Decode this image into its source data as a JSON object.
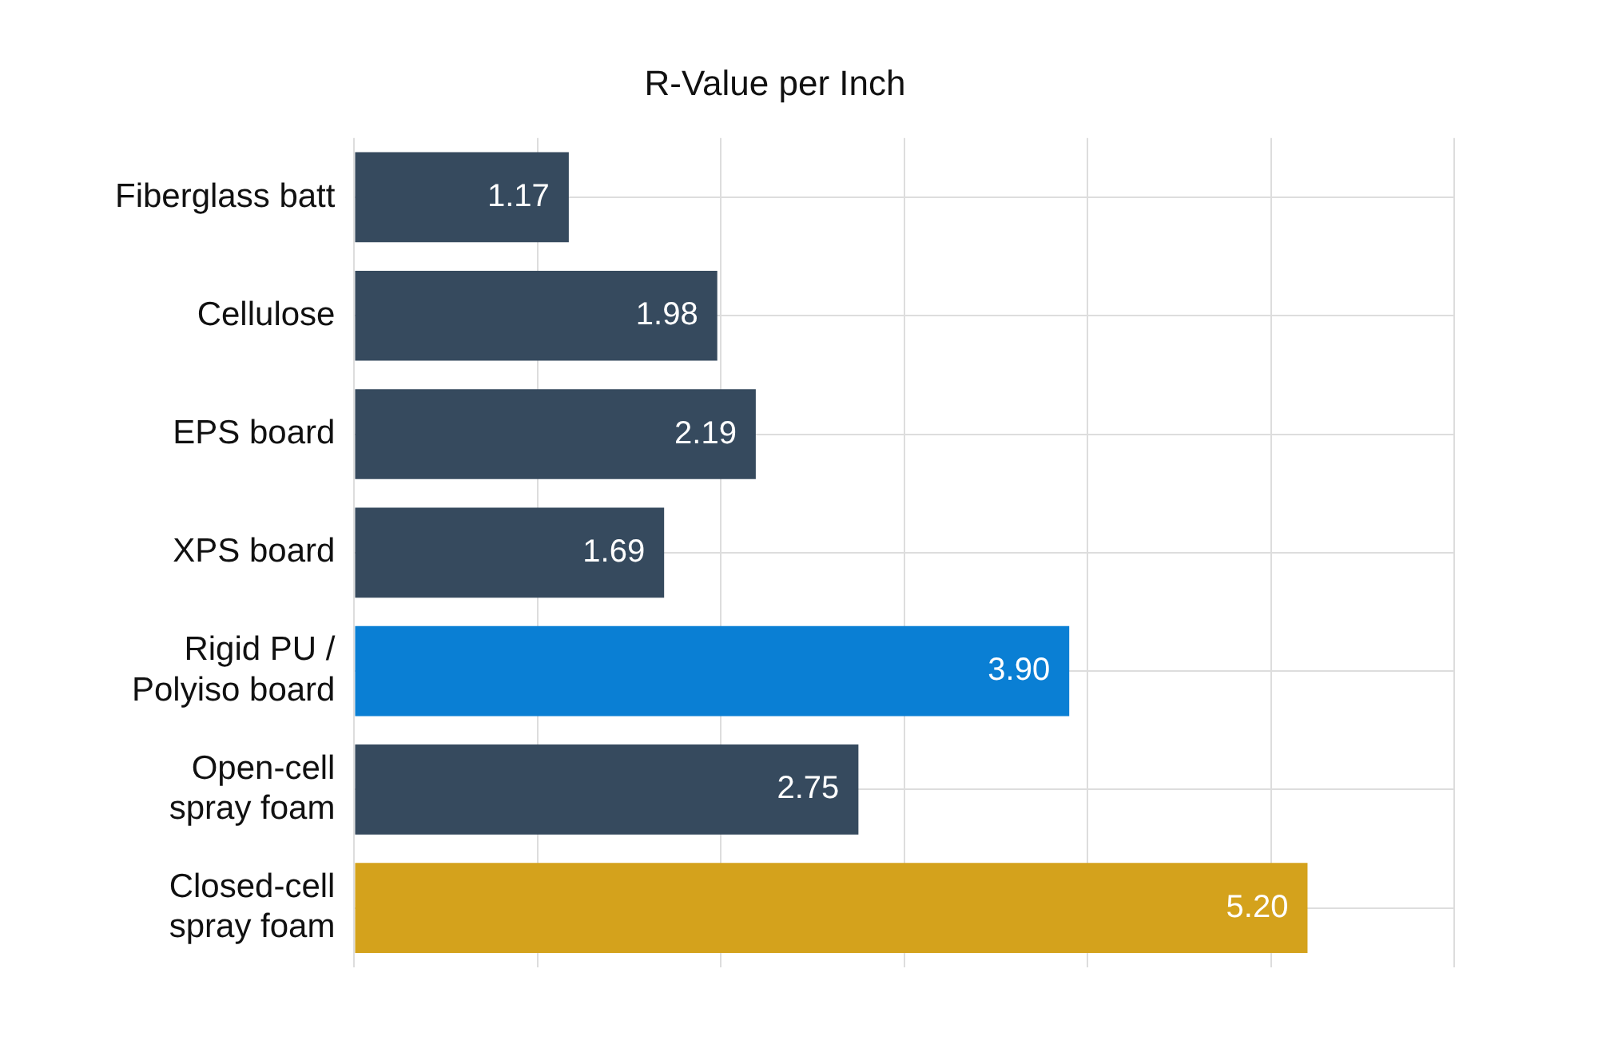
{
  "chart_data": {
    "type": "bar",
    "orientation": "horizontal",
    "title": "R-Value per Inch",
    "categories": [
      "Fiberglass batt",
      "Cellulose",
      "EPS board",
      "XPS board",
      "Rigid PU / Polyiso board",
      "Open-cell spray foam",
      "Closed-cell spray foam"
    ],
    "values": [
      1.17,
      1.98,
      2.19,
      1.69,
      3.9,
      2.75,
      5.2
    ],
    "colors": [
      "#364a5e",
      "#364a5e",
      "#364a5e",
      "#364a5e",
      "#0a7fd4",
      "#364a5e",
      "#d4a21c"
    ],
    "value_labels": [
      "1.17",
      "1.98",
      "2.19",
      "1.69",
      "3.90",
      "2.75",
      "5.20"
    ],
    "grid": true,
    "tick_labels": "y",
    "legend": false
  }
}
